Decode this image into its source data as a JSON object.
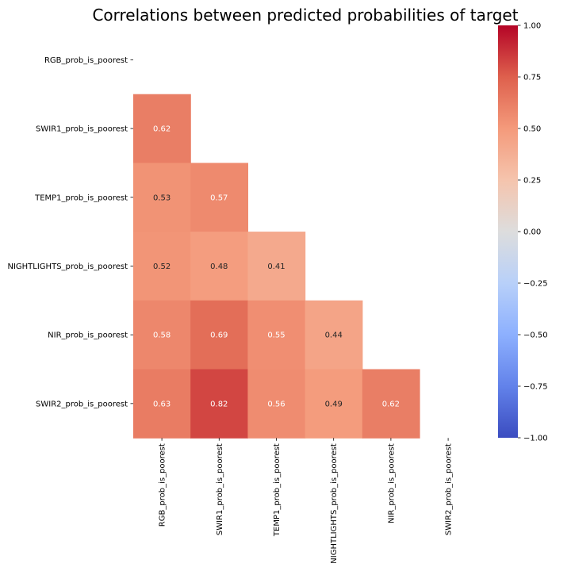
{
  "chart_data": {
    "type": "heatmap",
    "title": "Correlations between predicted probabilities of target",
    "row_labels": [
      "RGB_prob_is_poorest",
      "SWIR1_prob_is_poorest",
      "TEMP1_prob_is_poorest",
      "NIGHTLIGHTS_prob_is_poorest",
      "NIR_prob_is_poorest",
      "SWIR2_prob_is_poorest"
    ],
    "col_labels": [
      "RGB_prob_is_poorest",
      "SWIR1_prob_is_poorest",
      "TEMP1_prob_is_poorest",
      "NIGHTLIGHTS_prob_is_poorest",
      "NIR_prob_is_poorest",
      "SWIR2_prob_is_poorest"
    ],
    "values": [
      [
        null,
        null,
        null,
        null,
        null,
        null
      ],
      [
        0.62,
        null,
        null,
        null,
        null,
        null
      ],
      [
        0.53,
        0.57,
        null,
        null,
        null,
        null
      ],
      [
        0.52,
        0.48,
        0.41,
        null,
        null,
        null
      ],
      [
        0.58,
        0.69,
        0.55,
        0.44,
        null,
        null
      ],
      [
        0.63,
        0.82,
        0.56,
        0.49,
        0.62,
        null
      ]
    ],
    "mask": "upper-triangle-including-diagonal",
    "colormap": "coolwarm",
    "vmin": -1.0,
    "vmax": 1.0,
    "colorbar": {
      "ticks": [
        1.0,
        0.75,
        0.5,
        0.25,
        0.0,
        -0.25,
        -0.5,
        -0.75,
        -1.0
      ],
      "tick_labels": [
        "1.00",
        "0.75",
        "0.50",
        "0.25",
        "0.00",
        "−0.25",
        "−0.50",
        "−0.75",
        "−1.00"
      ]
    }
  }
}
